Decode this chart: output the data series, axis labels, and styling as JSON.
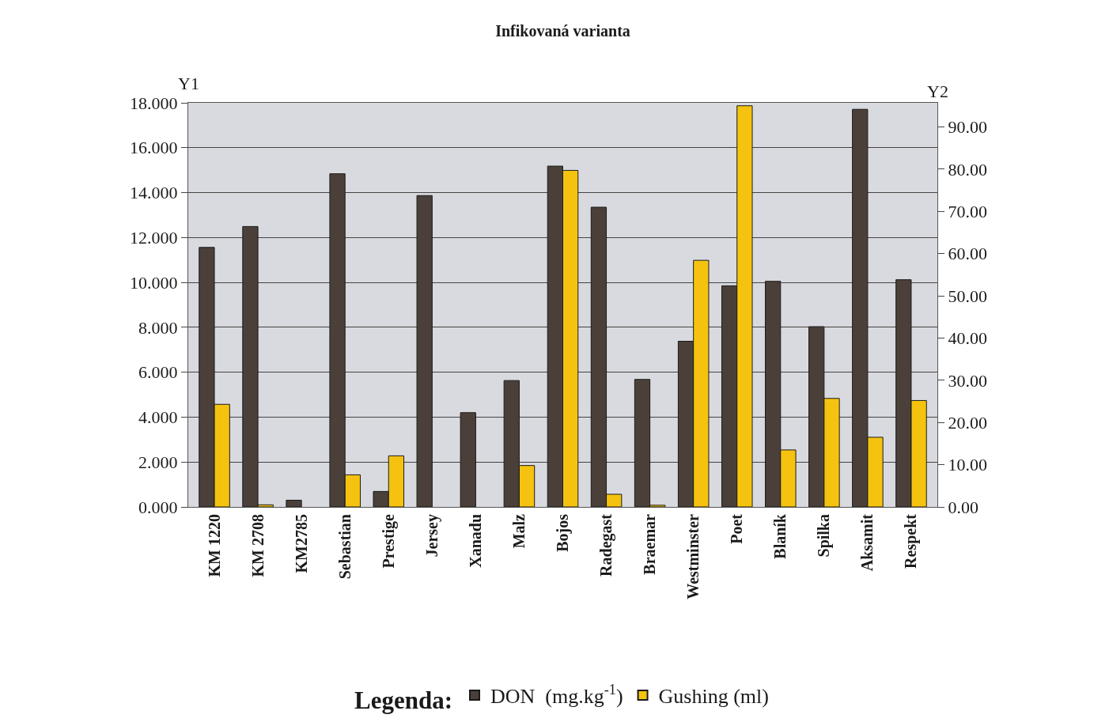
{
  "chart_data": {
    "type": "bar",
    "title": "Infikovaná varianta",
    "ylabel": "Y1",
    "y2label": "Y2",
    "legend_title": "Legenda:",
    "categories": [
      "KM 1220",
      "KM 2708",
      "KM2785",
      "Sebastian",
      "Prestige",
      "Jersey",
      "Xanadu",
      "Malz",
      "Bojos",
      "Radegast",
      "Braemar",
      "Westminster",
      "Poet",
      "Blaník",
      "Spilka",
      "Aksamit",
      "Respekt"
    ],
    "series": [
      {
        "name": "DON  (mg.kg$^{-1}$)",
        "color": "#4a4039",
        "values": [
          11.56,
          12.49,
          0.3,
          14.84,
          0.69,
          13.87,
          4.2,
          5.63,
          15.18,
          13.35,
          5.68,
          7.38,
          9.85,
          10.05,
          8.03,
          17.71,
          10.12
        ]
      },
      {
        "name": "Gushing (ml)",
        "color": "#f5c30f",
        "axis": "y2",
        "values": [
          24.3,
          0.5,
          null,
          7.6,
          12.1,
          null,
          null,
          9.8,
          79.7,
          3.0,
          0.4,
          58.4,
          95.0,
          13.5,
          25.7,
          16.5,
          25.2
        ]
      }
    ],
    "ylim": [
      0,
      18
    ],
    "yticks": [
      {
        "value": 0,
        "label": "0.000"
      },
      {
        "value": 2,
        "label": "2.000"
      },
      {
        "value": 4,
        "label": "4.000"
      },
      {
        "value": 6,
        "label": "6.000"
      },
      {
        "value": 8,
        "label": "8.000"
      },
      {
        "value": 10,
        "label": "10.000"
      },
      {
        "value": 12,
        "label": "12.000"
      },
      {
        "value": 14,
        "label": "14.000"
      },
      {
        "value": 16,
        "label": "16.000"
      },
      {
        "value": 18,
        "label": "18.000"
      }
    ],
    "y2lim": [
      0,
      95.7
    ],
    "y2ticks": [
      {
        "value": 0,
        "label": "0.00"
      },
      {
        "value": 10,
        "label": "10.00"
      },
      {
        "value": 20,
        "label": "20.00"
      },
      {
        "value": 30,
        "label": "30.00"
      },
      {
        "value": 40,
        "label": "40.00"
      },
      {
        "value": 50,
        "label": "50.00"
      },
      {
        "value": 60,
        "label": "60.00"
      },
      {
        "value": 70,
        "label": "70.00"
      },
      {
        "value": 80,
        "label": "80.00"
      },
      {
        "value": 90,
        "label": "90.00"
      }
    ],
    "grid": "y",
    "legend": "bottom"
  }
}
